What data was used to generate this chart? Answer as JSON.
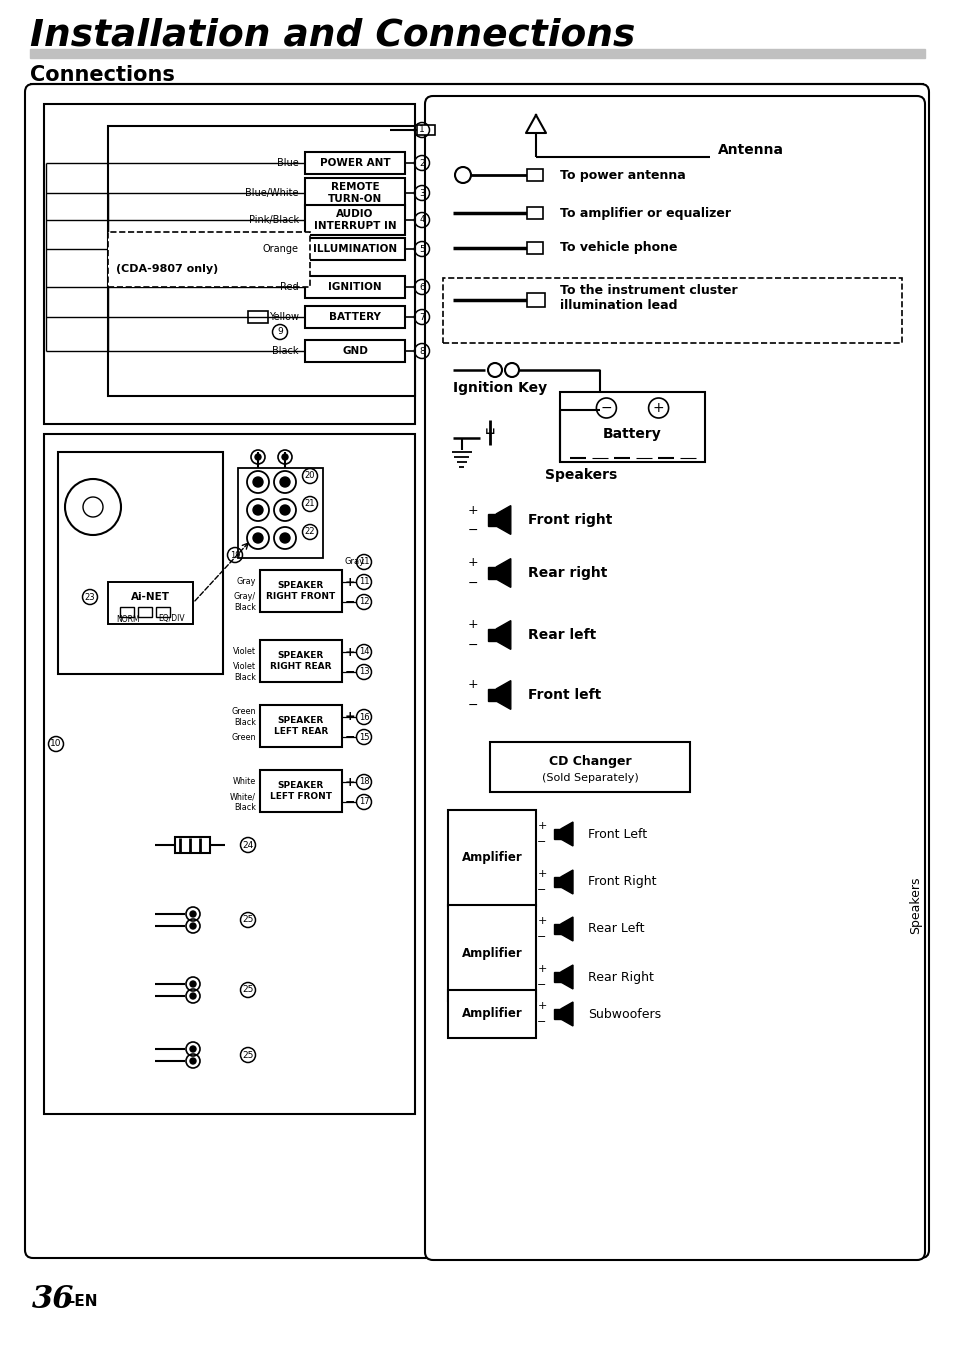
{
  "title": "Installation and Connections",
  "subtitle": "Connections",
  "page_num": "36",
  "page_suffix": "-EN",
  "wire_entries": [
    {
      "color": "Blue",
      "label": "POWER ANT",
      "num": "2"
    },
    {
      "color": "Blue/White",
      "label": "REMOTE\nTURN-ON",
      "num": "3"
    },
    {
      "color": "Pink/Black",
      "label": "AUDIO\nINTERRUPT IN",
      "num": "4"
    },
    {
      "color": "Orange",
      "label": "ILLUMINATION",
      "num": "5"
    },
    {
      "color": "Red",
      "label": "IGNITION",
      "num": "6"
    },
    {
      "color": "Yellow",
      "label": "BATTERY",
      "num": "7"
    },
    {
      "color": "Black",
      "label": "GND",
      "num": "8"
    }
  ],
  "speaker_entries": [
    {
      "label": "SPEAKER\nRIGHT FRONT",
      "cp": "Gray",
      "cm": "Gray/\nBlack",
      "np": "11",
      "nm": "12",
      "gray_top": true
    },
    {
      "label": "SPEAKER\nRIGHT REAR",
      "cp": "Violet",
      "cm": "Violet\nBlack",
      "np": "14",
      "nm": "13",
      "gray_top": false
    },
    {
      "label": "SPEAKER\nLEFT REAR",
      "cp": "Green\nBlack",
      "cm": "Green",
      "np": "16",
      "nm": "15",
      "gray_top": false
    },
    {
      "label": "SPEAKER\nLEFT FRONT",
      "cp": "White",
      "cm": "White/\nBlack",
      "np": "18",
      "nm": "17",
      "gray_top": false
    }
  ],
  "right_connectors": [
    {
      "label": "To power antenna",
      "type": "circle_plug"
    },
    {
      "label": "To amplifier or equalizer",
      "type": "plug"
    },
    {
      "label": "To vehicle phone",
      "type": "plug_thick"
    }
  ],
  "illumination_label": "To the instrument cluster\nillumination lead",
  "speaker_right_labels": [
    "Front right",
    "Rear right",
    "Rear left",
    "Front left"
  ],
  "amp_sections": [
    {
      "outputs": [
        "Front Left",
        "Front Right"
      ]
    },
    {
      "outputs": [
        "Rear Left",
        "Rear Right"
      ]
    },
    {
      "outputs": [
        "Subwoofers"
      ]
    }
  ]
}
